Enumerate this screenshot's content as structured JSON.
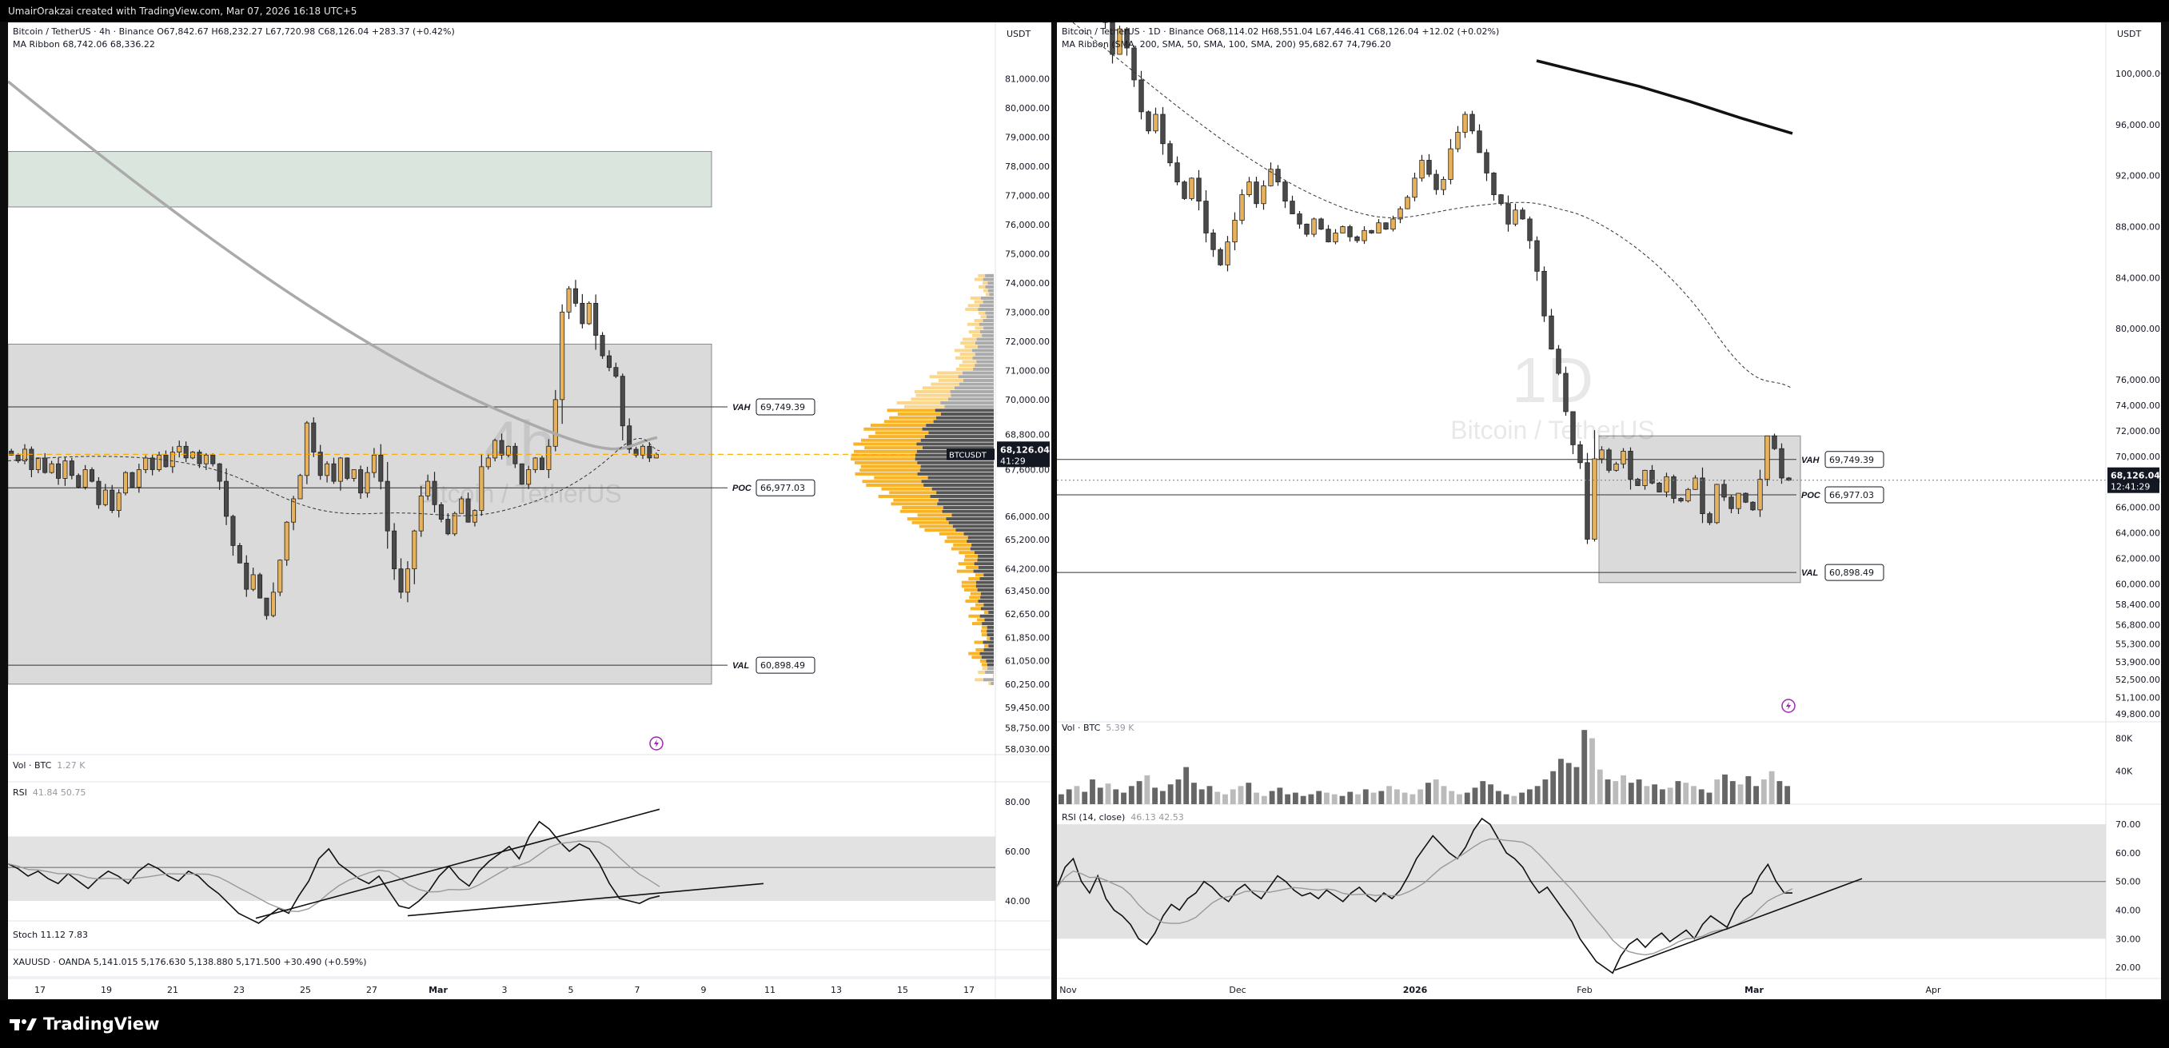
{
  "header": {
    "credit": "UmairOrakzai created with TradingView.com, Mar 07, 2026 16:18 UTC+5"
  },
  "brand": {
    "name": "TradingView"
  },
  "colors": {
    "up": "#e7b25b",
    "down": "#4a4a4a",
    "price_line": "#f7a600",
    "zone_green": "#d6e2da",
    "zone_gray": "#d6d6d6",
    "volume_profile": "#f7a600"
  },
  "left": {
    "timeframe_watermark": "4h",
    "symbol_watermark": "Bitcoin / TetherUS",
    "legend_line1": "Bitcoin / TetherUS · 4h · Binance  O67,842.67  H68,232.27  L67,720.98  C68,126.04  +283.37 (+0.42%)",
    "legend_line2": "MA Ribbon  68,742.06  68,336.22",
    "currency": "USDT",
    "vol_label": "Vol · BTC",
    "vol_value": "1.27 K",
    "rsi_label": "RSI",
    "rsi_values": "41.84  50.75",
    "stoch_label": "Stoch  11.12  7.83",
    "xau_label": "XAUUSD · OANDA  5,141.015  5,176.630  5,138.880  5,171.500  +30.490 (+0.59%)",
    "symbol_tag": "BTCUSDT",
    "price_tag": "68,126.04",
    "countdown": "41:29",
    "vah": {
      "label": "VAH",
      "value": "69,749.39"
    },
    "poc": {
      "label": "POC",
      "value": "66,977.03"
    },
    "val": {
      "label": "VAL",
      "value": "60,898.49"
    },
    "rsi_axis": [
      "80.00",
      "60.00",
      "40.00"
    ]
  },
  "right": {
    "timeframe_watermark": "1D",
    "symbol_watermark": "Bitcoin / TetherUS",
    "legend_line1": "Bitcoin / TetherUS · 1D · Binance  O68,114.02  H68,551.04  L67,446.41  C68,126.04  +12.02 (+0.02%)",
    "legend_line2": "MA Ribbon (SMA, 200, SMA, 50, SMA, 100, SMA, 200)  95,682.67  74,796.20",
    "currency": "USDT",
    "vol_label": "Vol · BTC",
    "vol_value": "5.39 K",
    "rsi_label": "RSI (14, close)",
    "rsi_values": "46.13  42.53",
    "price_tag": "68,126.04",
    "countdown": "12:41:29",
    "vah": {
      "label": "VAH",
      "value": "69,749.39"
    },
    "poc": {
      "label": "POC",
      "value": "66,977.03"
    },
    "val": {
      "label": "VAL",
      "value": "60,898.49"
    },
    "vol_axis": [
      "80K",
      "40K"
    ],
    "rsi_axis": [
      "70.00",
      "60.00",
      "50.00",
      "40.00",
      "30.00",
      "20.00"
    ]
  },
  "chart_data": [
    {
      "type": "candlestick",
      "title": "Bitcoin / TetherUS · 4h · Binance",
      "y_ticks": [
        "81,000.00",
        "80,000.00",
        "79,000.00",
        "78,000.00",
        "77,000.00",
        "76,000.00",
        "75,000.00",
        "74,000.00",
        "73,000.00",
        "72,000.00",
        "71,000.00",
        "70,000.00",
        "68,800.00",
        "67,600.00",
        "66,000.00",
        "65,200.00",
        "64,200.00",
        "63,450.00",
        "62,650.00",
        "61,850.00",
        "61,050.00",
        "60,250.00",
        "59,450.00",
        "58,750.00",
        "58,030.00"
      ],
      "x_ticks": [
        "17",
        "19",
        "21",
        "23",
        "25",
        "27",
        "Mar",
        "3",
        "5",
        "7",
        "9",
        "11",
        "13",
        "15",
        "17"
      ],
      "ylim": [
        58000,
        81500
      ],
      "close_price": 68126.04,
      "levels": {
        "VAH": 69749.39,
        "POC": 66977.03,
        "VAL": 60898.49
      },
      "zones": [
        {
          "from": 76600,
          "to": 78500
        },
        {
          "from": 60250,
          "to": 71900
        }
      ],
      "closes": [
        68100,
        67900,
        68300,
        67600,
        68000,
        67500,
        67800,
        67300,
        67900,
        67400,
        67000,
        67600,
        67200,
        66400,
        66900,
        66200,
        66800,
        67500,
        67000,
        67600,
        68000,
        67600,
        68100,
        67700,
        68200,
        68400,
        68000,
        68200,
        67800,
        68100,
        67800,
        67200,
        66000,
        65000,
        64400,
        63500,
        64000,
        63200,
        62600,
        63400,
        64500,
        65800,
        66600,
        67400,
        69200,
        68200,
        67400,
        67800,
        67200,
        68000,
        67300,
        67600,
        66800,
        67500,
        68100,
        67200,
        65500,
        64200,
        63400,
        64200,
        65500,
        66700,
        67200,
        66400,
        65900,
        65400,
        66100,
        66600,
        65800,
        66200,
        67700,
        68000,
        68600,
        68100,
        68400,
        67800,
        67100,
        67600,
        68000,
        67600,
        68400,
        70000,
        73000,
        73800,
        73300,
        72600,
        73300,
        72200,
        71500,
        71100,
        70800,
        69100,
        68300,
        68100,
        68400,
        68000,
        68126
      ],
      "rsi": [
        55,
        53,
        50,
        52,
        49,
        47,
        51,
        48,
        45,
        49,
        52,
        50,
        47,
        52,
        55,
        53,
        50,
        48,
        52,
        50,
        46,
        43,
        39,
        35,
        33,
        31,
        34,
        37,
        35,
        42,
        48,
        57,
        61,
        55,
        52,
        49,
        47,
        50,
        44,
        38,
        37,
        40,
        44,
        50,
        54,
        49,
        46,
        52,
        56,
        59,
        62,
        57,
        66,
        72,
        69,
        64,
        60,
        63,
        61,
        55,
        47,
        41,
        40,
        39,
        41,
        42
      ],
      "rsi_ylim": [
        30,
        80
      ]
    },
    {
      "type": "candlestick",
      "title": "Bitcoin / TetherUS · 1D · Binance",
      "y_ticks": [
        "100,000.00",
        "96,000.00",
        "92,000.00",
        "88,000.00",
        "84,000.00",
        "80,000.00",
        "76,000.00",
        "74,000.00",
        "72,000.00",
        "70,000.00",
        "68,000.00",
        "66,000.00",
        "64,000.00",
        "62,000.00",
        "60,000.00",
        "58,400.00",
        "56,800.00",
        "55,300.00",
        "53,900.00",
        "52,500.00",
        "51,100.00",
        "49,800.00"
      ],
      "x_ticks": [
        "Nov",
        "Dec",
        "2026",
        "Feb",
        "Mar",
        "Apr"
      ],
      "ylim": [
        49500,
        101000
      ],
      "close_price": 68126.04,
      "levels": {
        "VAH": 69749.39,
        "POC": 66977.03,
        "VAL": 60898.49
      },
      "zones": [
        {
          "from": 60100,
          "to": 71600
        }
      ],
      "closes": [
        110000,
        107500,
        108800,
        106500,
        104000,
        101500,
        103500,
        102000,
        99500,
        97000,
        95500,
        96800,
        94500,
        93000,
        91500,
        90200,
        91800,
        90000,
        87500,
        86200,
        85000,
        86800,
        88500,
        90500,
        91500,
        89800,
        91200,
        92500,
        91500,
        90000,
        89000,
        88200,
        87400,
        88600,
        87800,
        86800,
        87500,
        88000,
        87200,
        86900,
        87700,
        87500,
        88300,
        87800,
        88600,
        89400,
        90300,
        91800,
        93200,
        92100,
        90900,
        91700,
        94100,
        95400,
        96800,
        95500,
        93800,
        92200,
        90500,
        89800,
        88200,
        89300,
        88600,
        86900,
        84500,
        81000,
        78400,
        76500,
        73500,
        70900,
        69500,
        63500,
        69800,
        70500,
        68900,
        69400,
        70400,
        68200,
        67700,
        68900,
        67900,
        67200,
        68400,
        66700,
        66500,
        67400,
        68300,
        65500,
        64800,
        67800,
        66800,
        65900,
        67100,
        66400,
        65800,
        68200,
        71600,
        70600,
        68300,
        68126
      ],
      "sma_slow": [
        101000,
        100000,
        99000,
        97800,
        96500,
        95300
      ],
      "volume": [
        12,
        18,
        22,
        15,
        30,
        20,
        25,
        18,
        14,
        22,
        28,
        35,
        20,
        16,
        24,
        30,
        45,
        26,
        18,
        22,
        15,
        12,
        18,
        22,
        26,
        14,
        10,
        16,
        20,
        12,
        14,
        10,
        12,
        16,
        14,
        12,
        10,
        15,
        12,
        18,
        14,
        16,
        22,
        18,
        14,
        12,
        18,
        26,
        30,
        22,
        16,
        12,
        14,
        20,
        28,
        24,
        16,
        12,
        10,
        14,
        18,
        22,
        30,
        40,
        55,
        50,
        45,
        90,
        80,
        42,
        30,
        28,
        35,
        26,
        30,
        22,
        24,
        18,
        20,
        28,
        26,
        22,
        18,
        14,
        30,
        36,
        28,
        24,
        34,
        22,
        30,
        40,
        28,
        22
      ],
      "rsi": [
        48,
        55,
        58,
        50,
        46,
        52,
        44,
        40,
        38,
        35,
        30,
        28,
        32,
        38,
        42,
        40,
        44,
        46,
        50,
        48,
        45,
        43,
        47,
        49,
        46,
        44,
        48,
        52,
        50,
        47,
        45,
        46,
        44,
        47,
        45,
        43,
        46,
        48,
        45,
        43,
        46,
        44,
        47,
        52,
        58,
        62,
        66,
        63,
        60,
        58,
        62,
        68,
        72,
        70,
        65,
        60,
        58,
        55,
        50,
        46,
        48,
        44,
        40,
        36,
        30,
        26,
        22,
        20,
        18,
        24,
        28,
        30,
        27,
        30,
        32,
        29,
        31,
        33,
        30,
        35,
        38,
        36,
        34,
        40,
        44,
        46,
        52,
        56,
        50,
        46,
        46
      ],
      "rsi_ylim": [
        15,
        72
      ]
    }
  ]
}
